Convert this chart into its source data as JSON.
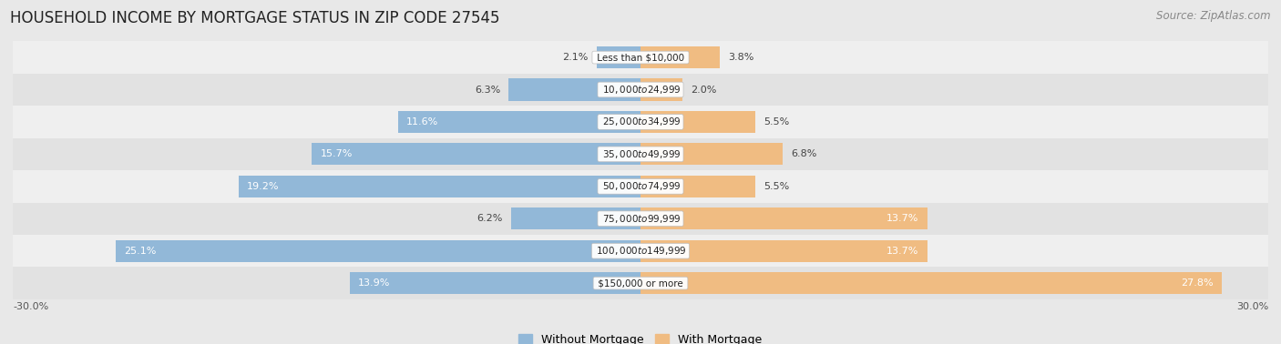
{
  "title": "HOUSEHOLD INCOME BY MORTGAGE STATUS IN ZIP CODE 27545",
  "source": "Source: ZipAtlas.com",
  "categories": [
    "Less than $10,000",
    "$10,000 to $24,999",
    "$25,000 to $34,999",
    "$35,000 to $49,999",
    "$50,000 to $74,999",
    "$75,000 to $99,999",
    "$100,000 to $149,999",
    "$150,000 or more"
  ],
  "without_mortgage": [
    2.1,
    6.3,
    11.6,
    15.7,
    19.2,
    6.2,
    25.1,
    13.9
  ],
  "with_mortgage": [
    3.8,
    2.0,
    5.5,
    6.8,
    5.5,
    13.7,
    13.7,
    27.8
  ],
  "blue_color": "#92b8d8",
  "orange_color": "#f0bc82",
  "bar_height": 0.68,
  "xlim": [
    -30,
    30
  ],
  "background_color": "#e8e8e8",
  "row_bg_even": "#efefef",
  "row_bg_odd": "#e2e2e2",
  "title_fontsize": 12,
  "source_fontsize": 8.5,
  "label_fontsize": 8,
  "category_fontsize": 7.5,
  "legend_fontsize": 9
}
